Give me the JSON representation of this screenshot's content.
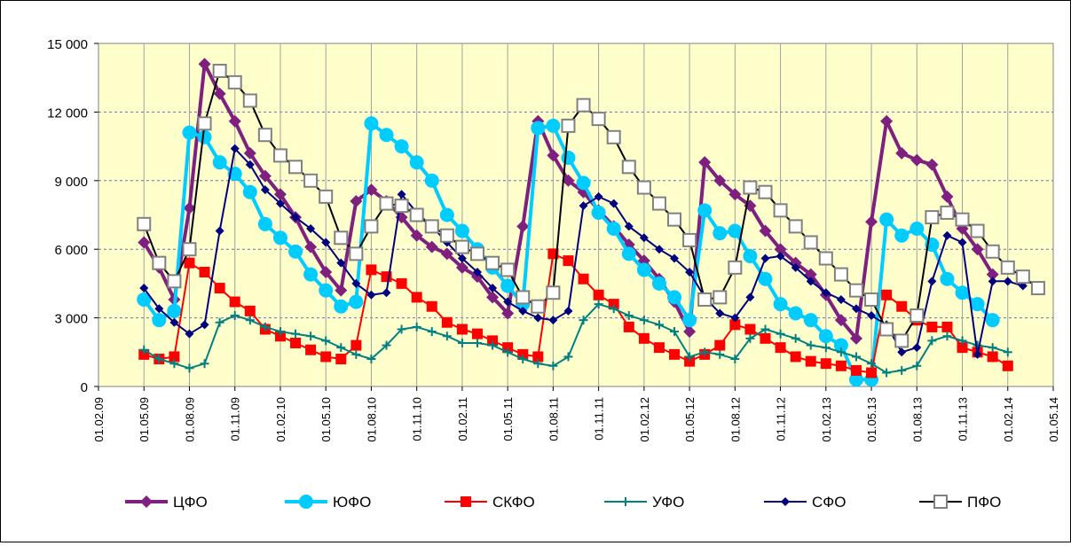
{
  "chart_data": {
    "type": "line",
    "title": "",
    "xlabel": "",
    "ylabel": "",
    "ylim": [
      0,
      15000
    ],
    "y_ticks": [
      "0",
      "3 000",
      "6 000",
      "9 000",
      "12 000",
      "15 000"
    ],
    "x_ticks": [
      "01.02.09",
      "01.05.09",
      "01.08.09",
      "01.11.09",
      "01.02.10",
      "01.05.10",
      "01.08.10",
      "01.11.10",
      "01.02.11",
      "01.05.11",
      "01.08.11",
      "01.11.11",
      "01.02.12",
      "01.05.12",
      "01.08.12",
      "01.11.12",
      "01.02.13",
      "01.05.13",
      "01.08.13",
      "01.11.13",
      "01.02.14",
      "01.05.14"
    ],
    "x_start": "2009-05",
    "grid": "horizontal",
    "legend": "bottom",
    "series": [
      {
        "name": "ЦФО",
        "color": "#7F1F7F",
        "marker": "diamond",
        "values": [
          6300,
          5200,
          3800,
          7800,
          14100,
          12800,
          11600,
          10200,
          9200,
          8400,
          7400,
          6100,
          5000,
          4200,
          8100,
          8600,
          8100,
          7400,
          6600,
          6100,
          5800,
          5200,
          4800,
          3900,
          3200,
          7000,
          11600,
          10100,
          9000,
          8500,
          7700,
          7000,
          6200,
          5500,
          4700,
          3700,
          2400,
          9800,
          9000,
          8400,
          7900,
          6800,
          6000,
          5400,
          4900,
          4000,
          2900,
          2100,
          7200,
          11600,
          10200,
          9900,
          9700,
          8300,
          6900,
          6000,
          4900
        ]
      },
      {
        "name": "ЮФО",
        "color": "#00CCFF",
        "marker": "circle",
        "values": [
          3800,
          2900,
          3300,
          11100,
          10900,
          9800,
          9300,
          8500,
          7100,
          6500,
          5900,
          4900,
          4200,
          3500,
          3700,
          11500,
          11000,
          10500,
          9800,
          9000,
          7500,
          6800,
          6000,
          5200,
          4400,
          3600,
          11300,
          11400,
          10000,
          8900,
          7600,
          6900,
          5800,
          5100,
          4500,
          3900,
          2900,
          7700,
          6700,
          6800,
          5700,
          4700,
          3600,
          3200,
          2900,
          2200,
          1800,
          300,
          300,
          7300,
          6600,
          6900,
          6200,
          4700,
          4100,
          3600,
          2900
        ]
      },
      {
        "name": "СКФО",
        "color": "#FF0000",
        "marker": "square",
        "values": [
          1400,
          1200,
          1300,
          5400,
          5000,
          4300,
          3700,
          3300,
          2500,
          2200,
          1900,
          1600,
          1300,
          1200,
          1800,
          5100,
          4800,
          4500,
          3900,
          3500,
          2800,
          2500,
          2300,
          2000,
          1700,
          1400,
          1300,
          5800,
          5500,
          4700,
          4000,
          3600,
          2600,
          2100,
          1700,
          1400,
          1100,
          1400,
          1800,
          2700,
          2500,
          2100,
          1700,
          1300,
          1100,
          1000,
          900,
          700,
          600,
          4000,
          3500,
          2900,
          2600,
          2600,
          1700,
          1500,
          1300,
          900
        ]
      },
      {
        "name": "УФО",
        "color": "#008080",
        "marker": "plus",
        "values": [
          1600,
          1200,
          1000,
          800,
          1000,
          2800,
          3100,
          2900,
          2600,
          2400,
          2300,
          2200,
          2000,
          1700,
          1400,
          1200,
          1800,
          2500,
          2600,
          2400,
          2200,
          1900,
          1900,
          1800,
          1500,
          1200,
          1000,
          900,
          1300,
          2900,
          3600,
          3400,
          3100,
          2900,
          2700,
          2400,
          1300,
          1500,
          1400,
          1200,
          2100,
          2500,
          2300,
          2100,
          1800,
          1700,
          1500,
          1300,
          1000,
          600,
          700,
          900,
          2000,
          2200,
          2000,
          1800,
          1700,
          1500
        ]
      },
      {
        "name": "СФО",
        "color": "#000080",
        "marker": "diamond",
        "values": [
          4300,
          3400,
          2800,
          2300,
          2700,
          6800,
          10400,
          9700,
          8600,
          8000,
          7400,
          6900,
          6300,
          5400,
          4500,
          4000,
          4100,
          8400,
          7600,
          7000,
          6300,
          5600,
          5000,
          4300,
          3700,
          3300,
          3000,
          2900,
          3300,
          7900,
          8300,
          8000,
          7000,
          6500,
          6000,
          5600,
          5000,
          3900,
          3200,
          3000,
          3900,
          5600,
          5700,
          5200,
          4600,
          4100,
          3800,
          3400,
          3100,
          2700,
          1500,
          1700,
          4600,
          6600,
          6300,
          1400,
          4600,
          4600,
          4400
        ]
      },
      {
        "name": "ПФО",
        "color": "#000000",
        "marker": "open-square",
        "values": [
          7100,
          5400,
          4600,
          6000,
          11500,
          13800,
          13300,
          12500,
          11000,
          10100,
          9600,
          9000,
          8300,
          6500,
          5800,
          7000,
          8000,
          7900,
          7500,
          7000,
          6600,
          6100,
          5800,
          5400,
          5100,
          3900,
          3500,
          4100,
          11400,
          12300,
          11700,
          10900,
          9600,
          8700,
          8000,
          7300,
          6400,
          3800,
          3900,
          5200,
          8700,
          8500,
          7700,
          7000,
          6300,
          5600,
          4900,
          4200,
          3800,
          2500,
          2000,
          3100,
          7400,
          7600,
          7300,
          6800,
          5900,
          5200,
          4800,
          4300
        ]
      }
    ]
  }
}
